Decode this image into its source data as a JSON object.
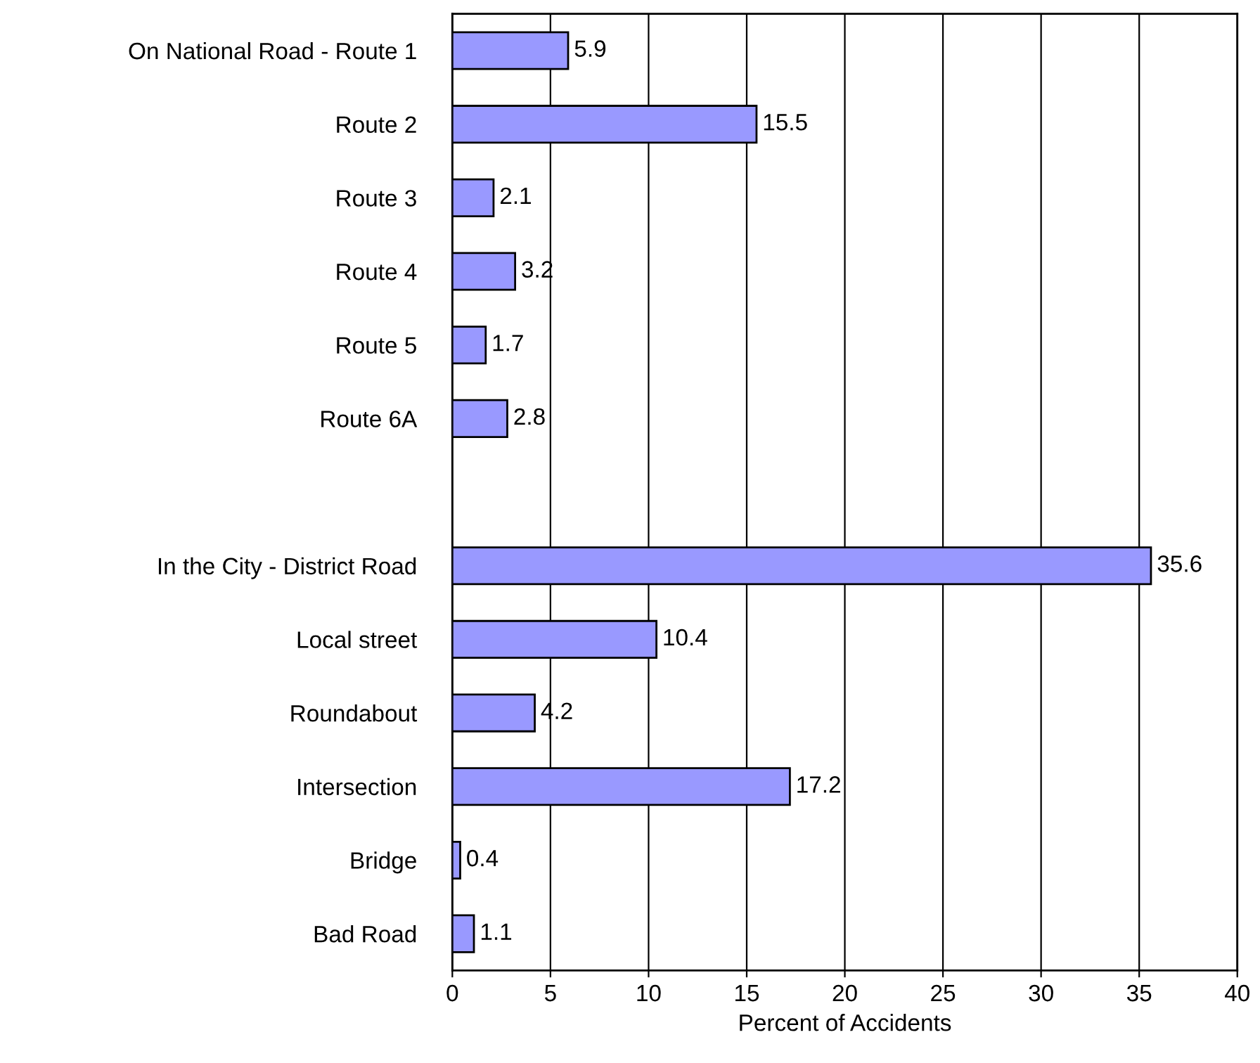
{
  "chart_data": {
    "type": "bar",
    "orientation": "horizontal",
    "xlabel": "Percent of Accidents",
    "categories": [
      "On National Road - Route 1",
      "Route 2",
      "Route 3",
      "Route 4",
      "Route 5",
      "Route 6A",
      null,
      "In the City - District Road",
      "Local street",
      "Roundabout",
      "Intersection",
      "Bridge",
      "Bad Road"
    ],
    "values": [
      5.9,
      15.5,
      2.1,
      3.2,
      1.7,
      2.8,
      null,
      35.6,
      10.4,
      4.2,
      17.2,
      0.4,
      1.1
    ],
    "color": "#9999ff",
    "xlim": [
      0,
      40
    ],
    "xticks": [
      0,
      5,
      10,
      15,
      20,
      25,
      30,
      35,
      40
    ],
    "grid": "x",
    "data_labels": true
  }
}
